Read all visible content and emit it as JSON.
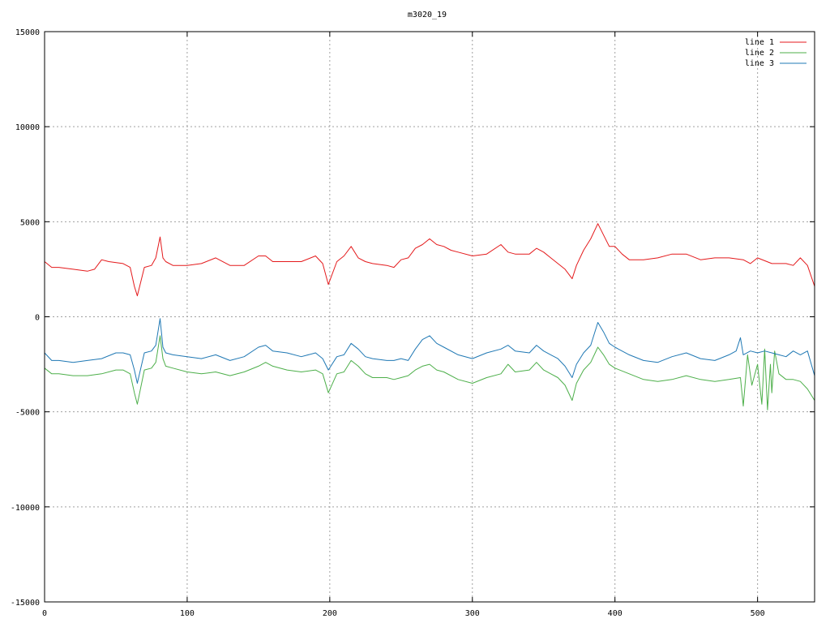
{
  "chart_data": {
    "type": "line",
    "title": "m3020_19",
    "xlabel": "",
    "ylabel": "",
    "xlim": [
      0,
      540
    ],
    "ylim": [
      -15000,
      15000
    ],
    "x_ticks": [
      0,
      100,
      200,
      300,
      400,
      500
    ],
    "y_ticks": [
      -15000,
      -10000,
      -5000,
      0,
      5000,
      10000,
      15000
    ],
    "grid": true,
    "legend_position": "top-right",
    "series": [
      {
        "name": "line 1",
        "color": "#e41a1c",
        "x": [
          0,
          5,
          10,
          20,
          30,
          35,
          40,
          45,
          55,
          60,
          63,
          65,
          70,
          75,
          78,
          81,
          83,
          85,
          90,
          100,
          110,
          120,
          130,
          140,
          150,
          155,
          160,
          170,
          180,
          190,
          195,
          199,
          205,
          210,
          215,
          220,
          225,
          230,
          240,
          245,
          250,
          255,
          260,
          265,
          270,
          275,
          280,
          285,
          290,
          300,
          310,
          320,
          325,
          330,
          340,
          345,
          350,
          355,
          360,
          365,
          370,
          373,
          378,
          383,
          388,
          392,
          396,
          400,
          405,
          410,
          420,
          430,
          440,
          450,
          460,
          470,
          480,
          490,
          495,
          500,
          510,
          520,
          525,
          530,
          535,
          540
        ],
        "y": [
          2900,
          2600,
          2600,
          2500,
          2400,
          2500,
          3000,
          2900,
          2800,
          2600,
          1600,
          1100,
          2600,
          2700,
          3100,
          4200,
          3100,
          2900,
          2700,
          2700,
          2800,
          3100,
          2700,
          2700,
          3200,
          3200,
          2900,
          2900,
          2900,
          3200,
          2800,
          1700,
          2900,
          3200,
          3700,
          3100,
          2900,
          2800,
          2700,
          2600,
          3000,
          3100,
          3600,
          3800,
          4100,
          3800,
          3700,
          3500,
          3400,
          3200,
          3300,
          3800,
          3400,
          3300,
          3300,
          3600,
          3400,
          3100,
          2800,
          2500,
          2000,
          2700,
          3500,
          4100,
          4900,
          4300,
          3700,
          3700,
          3300,
          3000,
          3000,
          3100,
          3300,
          3300,
          3000,
          3100,
          3100,
          3000,
          2800,
          3100,
          2800,
          2800,
          2700,
          3100,
          2700,
          1600
        ]
      },
      {
        "name": "line 2",
        "color": "#4daf4a",
        "x": [
          0,
          5,
          10,
          20,
          30,
          40,
          50,
          55,
          60,
          63,
          65,
          70,
          75,
          78,
          81,
          83,
          85,
          90,
          100,
          110,
          120,
          130,
          140,
          150,
          155,
          160,
          170,
          180,
          190,
          195,
          199,
          205,
          210,
          215,
          220,
          225,
          230,
          240,
          245,
          250,
          255,
          260,
          265,
          270,
          275,
          280,
          290,
          300,
          310,
          320,
          325,
          330,
          340,
          345,
          350,
          355,
          360,
          365,
          370,
          373,
          378,
          383,
          388,
          392,
          396,
          400,
          410,
          420,
          430,
          440,
          450,
          460,
          470,
          480,
          488,
          490,
          493,
          496,
          500,
          503,
          505,
          507,
          509,
          510,
          512,
          515,
          520,
          525,
          530,
          535,
          540
        ],
        "y": [
          -2700,
          -3000,
          -3000,
          -3100,
          -3100,
          -3000,
          -2800,
          -2800,
          -3000,
          -4000,
          -4600,
          -2800,
          -2700,
          -2400,
          -1000,
          -2200,
          -2600,
          -2700,
          -2900,
          -3000,
          -2900,
          -3100,
          -2900,
          -2600,
          -2400,
          -2600,
          -2800,
          -2900,
          -2800,
          -3000,
          -4000,
          -3000,
          -2900,
          -2300,
          -2600,
          -3000,
          -3200,
          -3200,
          -3300,
          -3200,
          -3100,
          -2800,
          -2600,
          -2500,
          -2800,
          -2900,
          -3300,
          -3500,
          -3200,
          -3000,
          -2500,
          -2900,
          -2800,
          -2400,
          -2800,
          -3000,
          -3200,
          -3600,
          -4400,
          -3500,
          -2800,
          -2400,
          -1600,
          -2000,
          -2500,
          -2700,
          -3000,
          -3300,
          -3400,
          -3300,
          -3100,
          -3300,
          -3400,
          -3300,
          -3200,
          -4700,
          -2000,
          -3600,
          -2500,
          -4600,
          -1700,
          -4900,
          -2500,
          -4000,
          -1800,
          -3000,
          -3300,
          -3300,
          -3400,
          -3800,
          -4400
        ]
      },
      {
        "name": "line 3",
        "color": "#1f78b4",
        "x": [
          0,
          5,
          10,
          20,
          30,
          40,
          50,
          55,
          60,
          63,
          65,
          70,
          75,
          78,
          81,
          83,
          85,
          90,
          100,
          110,
          120,
          130,
          140,
          150,
          155,
          160,
          170,
          180,
          190,
          195,
          199,
          205,
          210,
          215,
          220,
          225,
          230,
          240,
          245,
          250,
          255,
          260,
          265,
          270,
          275,
          280,
          290,
          300,
          310,
          320,
          325,
          330,
          340,
          345,
          350,
          355,
          360,
          365,
          370,
          373,
          378,
          383,
          388,
          392,
          396,
          400,
          410,
          420,
          430,
          440,
          450,
          460,
          470,
          480,
          485,
          488,
          490,
          495,
          500,
          505,
          510,
          515,
          520,
          525,
          530,
          535,
          540
        ],
        "y": [
          -1900,
          -2300,
          -2300,
          -2400,
          -2300,
          -2200,
          -1900,
          -1900,
          -2000,
          -2800,
          -3500,
          -1900,
          -1800,
          -1500,
          -100,
          -1600,
          -1900,
          -2000,
          -2100,
          -2200,
          -2000,
          -2300,
          -2100,
          -1600,
          -1500,
          -1800,
          -1900,
          -2100,
          -1900,
          -2200,
          -2800,
          -2100,
          -2000,
          -1400,
          -1700,
          -2100,
          -2200,
          -2300,
          -2300,
          -2200,
          -2300,
          -1700,
          -1200,
          -1000,
          -1400,
          -1600,
          -2000,
          -2200,
          -1900,
          -1700,
          -1500,
          -1800,
          -1900,
          -1500,
          -1800,
          -2000,
          -2200,
          -2600,
          -3200,
          -2500,
          -1900,
          -1500,
          -300,
          -800,
          -1400,
          -1600,
          -2000,
          -2300,
          -2400,
          -2100,
          -1900,
          -2200,
          -2300,
          -2000,
          -1800,
          -1100,
          -2000,
          -1800,
          -1900,
          -1800,
          -1900,
          -2000,
          -2100,
          -1800,
          -2000,
          -1800,
          -3100
        ]
      }
    ]
  }
}
